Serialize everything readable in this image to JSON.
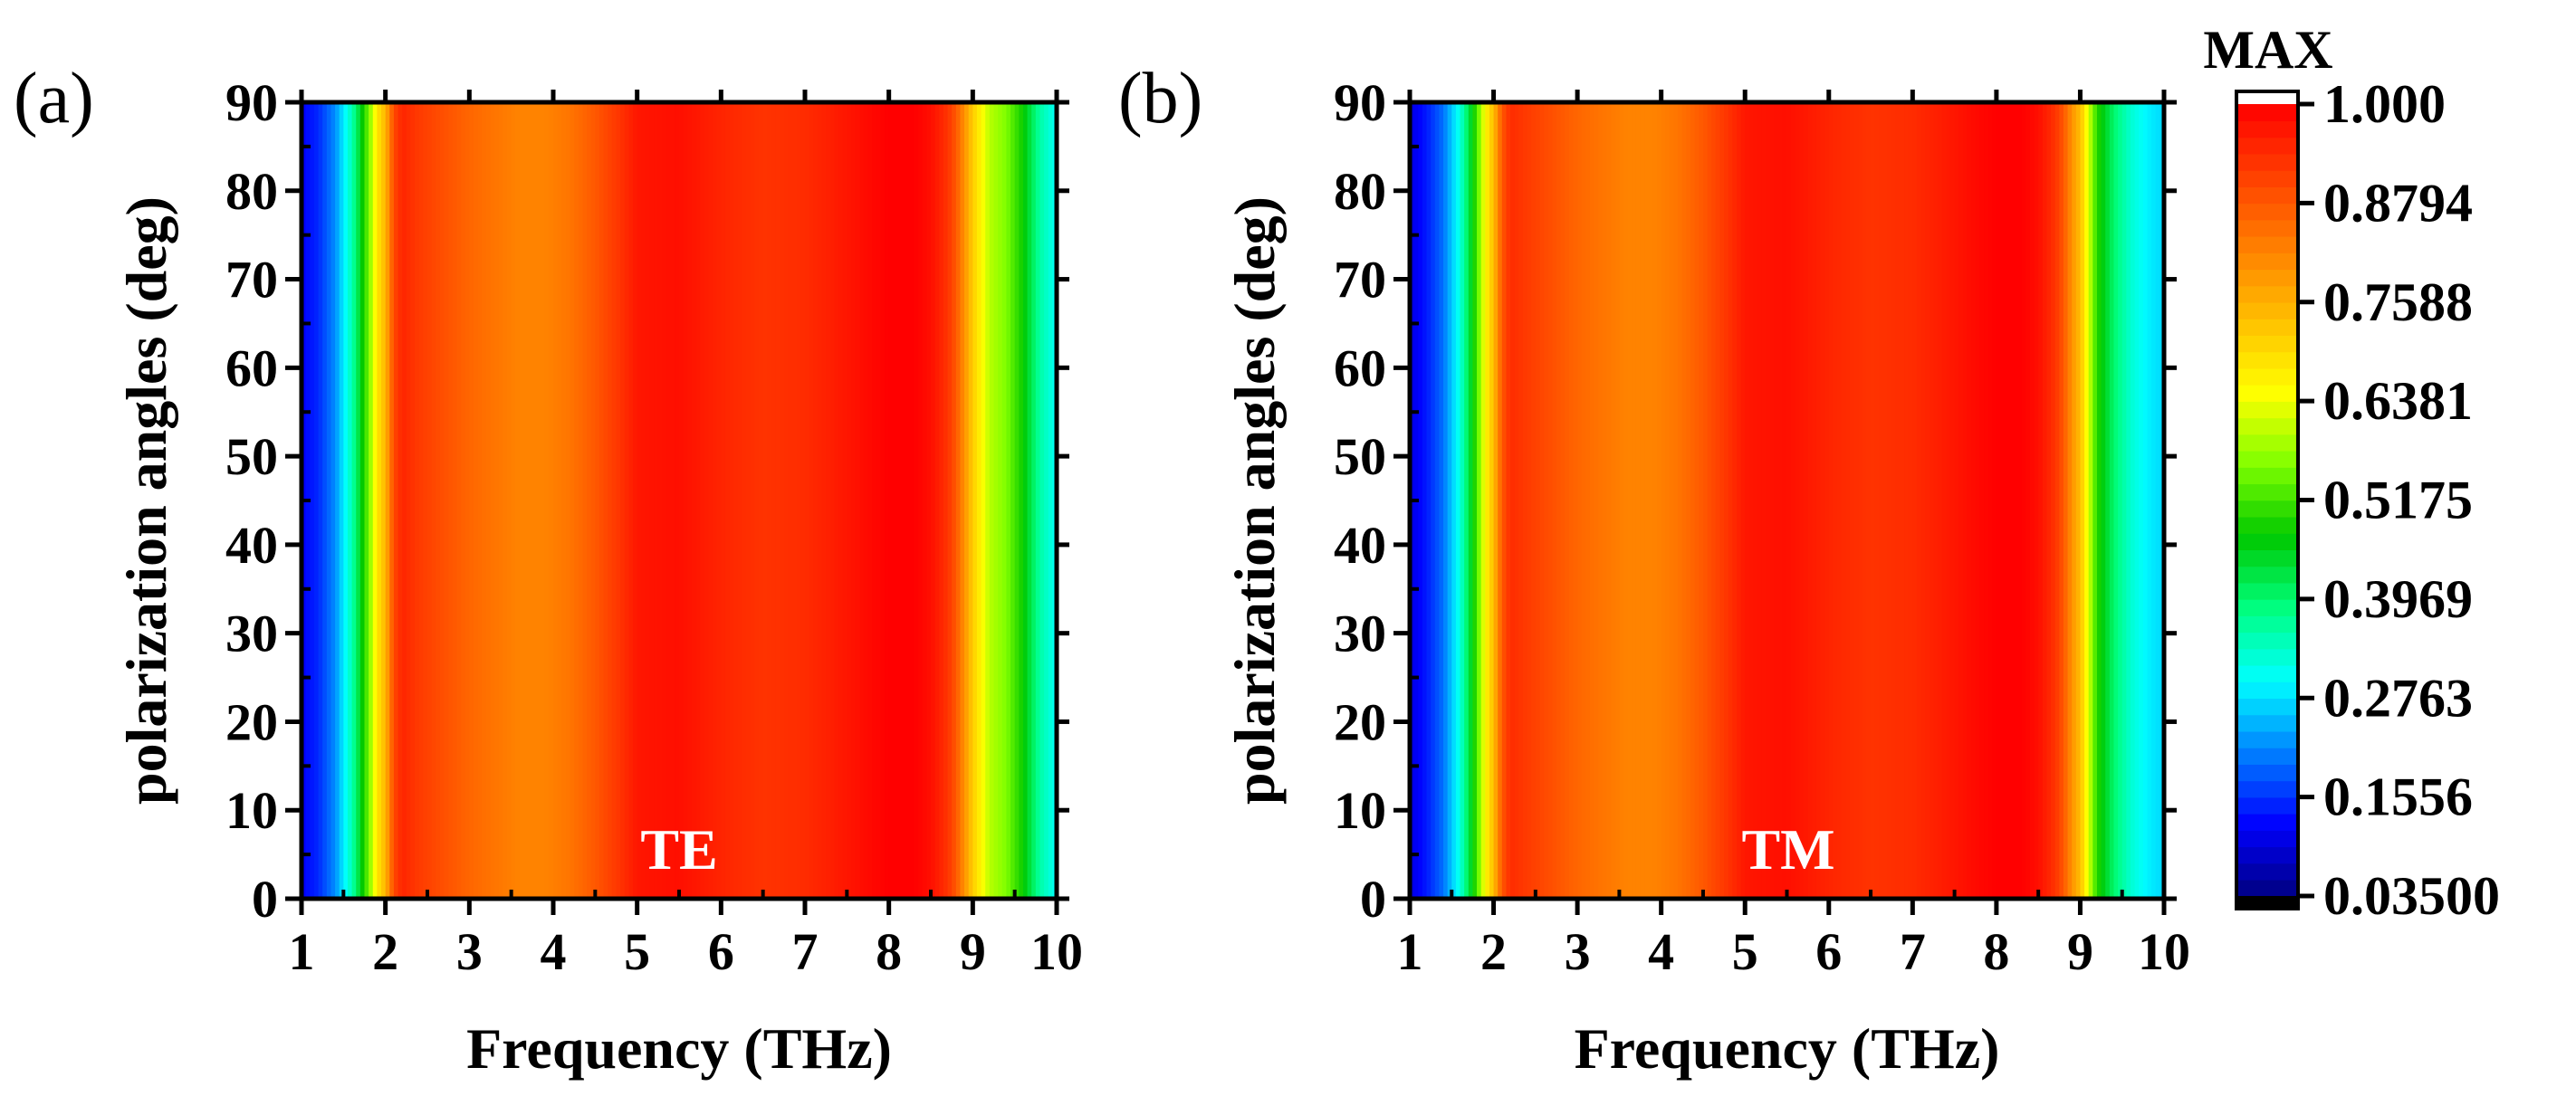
{
  "chart_data": [
    {
      "type": "heatmap",
      "panel_label": "(a)",
      "mode_label": "TE",
      "xlabel": "Frequency (THz)",
      "ylabel": "polarization angles (deg)",
      "xlim": [
        1,
        10
      ],
      "ylim": [
        0,
        90
      ],
      "xticks": [
        "1",
        "2",
        "3",
        "4",
        "5",
        "6",
        "7",
        "8",
        "9",
        "10"
      ],
      "yticks": [
        "0",
        "10",
        "20",
        "30",
        "40",
        "50",
        "60",
        "70",
        "80",
        "90"
      ],
      "frequency_profile": {
        "frequency": [
          1.0,
          1.2,
          1.4,
          1.6,
          1.8,
          1.9,
          2.0,
          2.1,
          2.2,
          2.4,
          2.6,
          2.8,
          3.0,
          3.3,
          3.6,
          3.9,
          4.2,
          4.5,
          4.8,
          5.0,
          5.5,
          6.0,
          6.5,
          7.0,
          7.5,
          7.8,
          8.0,
          8.3,
          8.5,
          8.7,
          8.8,
          8.9,
          9.0,
          9.1,
          9.2,
          9.4,
          9.6,
          9.8,
          10.0
        ],
        "value": [
          0.12,
          0.15,
          0.22,
          0.35,
          0.55,
          0.68,
          0.75,
          0.9,
          0.95,
          0.92,
          0.9,
          0.88,
          0.86,
          0.84,
          0.82,
          0.82,
          0.84,
          0.88,
          0.93,
          0.97,
          0.98,
          0.95,
          0.93,
          0.94,
          0.97,
          0.99,
          1.0,
          1.0,
          0.98,
          0.93,
          0.88,
          0.8,
          0.72,
          0.66,
          0.6,
          0.56,
          0.48,
          0.36,
          0.3
        ]
      }
    },
    {
      "type": "heatmap",
      "panel_label": "(b)",
      "mode_label": "TM",
      "xlabel": "Frequency (THz)",
      "ylabel": "polarization angles (deg)",
      "xlim": [
        1,
        10
      ],
      "ylim": [
        0,
        90
      ],
      "xticks": [
        "1",
        "2",
        "3",
        "4",
        "5",
        "6",
        "7",
        "8",
        "9",
        "10"
      ],
      "yticks": [
        "0",
        "10",
        "20",
        "30",
        "40",
        "50",
        "60",
        "70",
        "80",
        "90"
      ],
      "frequency_profile": {
        "frequency": [
          1.0,
          1.2,
          1.4,
          1.6,
          1.8,
          1.9,
          2.0,
          2.1,
          2.2,
          2.4,
          2.6,
          2.8,
          3.0,
          3.3,
          3.6,
          3.9,
          4.2,
          4.5,
          4.8,
          5.0,
          5.5,
          6.0,
          6.5,
          7.0,
          7.5,
          7.8,
          8.0,
          8.3,
          8.5,
          8.7,
          8.8,
          8.9,
          9.0,
          9.1,
          9.2,
          9.4,
          9.6,
          9.8,
          10.0
        ],
        "value": [
          0.1,
          0.14,
          0.2,
          0.32,
          0.52,
          0.66,
          0.74,
          0.88,
          0.94,
          0.92,
          0.9,
          0.88,
          0.86,
          0.84,
          0.82,
          0.82,
          0.84,
          0.88,
          0.93,
          0.97,
          0.98,
          0.95,
          0.93,
          0.94,
          0.97,
          0.99,
          1.0,
          1.0,
          0.98,
          0.93,
          0.88,
          0.8,
          0.74,
          0.62,
          0.5,
          0.4,
          0.33,
          0.29,
          0.27
        ]
      }
    }
  ],
  "colorbar": {
    "title": "MAX",
    "ticks": [
      "1.000",
      "0.8794",
      "0.7588",
      "0.6381",
      "0.5175",
      "0.3969",
      "0.2763",
      "0.1556",
      "0.03500"
    ],
    "min": 0.035,
    "max": 1.0,
    "colors": [
      "#000080",
      "#0000ff",
      "#0080ff",
      "#00ffff",
      "#00ff80",
      "#00c800",
      "#80ff00",
      "#ffff00",
      "#ffc000",
      "#ff8000",
      "#ff4000",
      "#ff0000"
    ]
  }
}
